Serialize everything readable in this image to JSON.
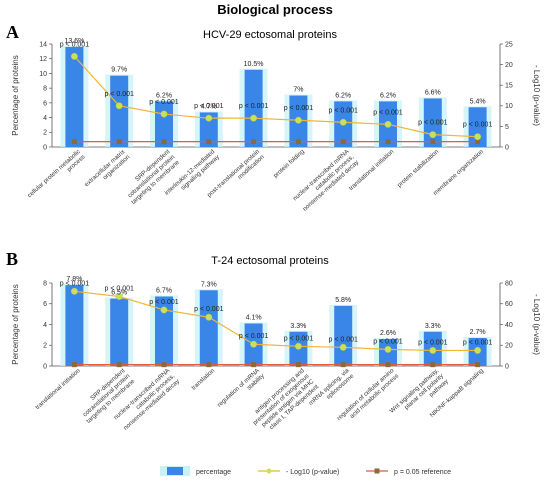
{
  "figure_title": "Biological process",
  "legend": {
    "percentage": "percentage",
    "log10": "- Log10 (p-value)",
    "reference": "p = 0.05 reference"
  },
  "colors": {
    "bar": "#3a86e8",
    "bar_shadow": "#c8f2f5",
    "line": "#f2b533",
    "marker": "#c9e05a",
    "reference": "#e35b3a"
  },
  "chart_data": [
    {
      "panel": "A",
      "type": "bar",
      "title": "HCV-29 ectosomal proteins",
      "ylabel_left": "Percentage of proteins",
      "ylabel_right": "- Log10 (p-value)",
      "ylim_left": [
        0,
        14
      ],
      "yticks_left": [
        0,
        2,
        4,
        6,
        8,
        10,
        12,
        14
      ],
      "ylim_right": [
        0,
        25
      ],
      "yticks_right": [
        0,
        5,
        10,
        15,
        20,
        25
      ],
      "categories": [
        [
          "cellular protein metabolic",
          "process"
        ],
        [
          "extracellular matrix",
          "organization"
        ],
        [
          "SRP-dependent",
          "cotranslational protein",
          "targeting to membrane"
        ],
        [
          "interleukin-12-mediated",
          "signaling pathway"
        ],
        [
          "post-translational protein",
          "modification"
        ],
        [
          "protein folding"
        ],
        [
          "nuclear-transcribed mRNA",
          "catabolic process,",
          "nonsense-mediated decay"
        ],
        [
          "translational initiation"
        ],
        [
          "protein stabilization"
        ],
        [
          "membrane organization"
        ]
      ],
      "percent_labels": [
        "13.6%",
        "9.7%",
        "6.2%",
        "4.7%",
        "10.5%",
        "7%",
        "6.2%",
        "6.2%",
        "6.6%",
        "5.4%"
      ],
      "series": [
        {
          "name": "percentage",
          "values": [
            13.6,
            9.7,
            6.2,
            4.7,
            10.5,
            7.0,
            6.2,
            6.2,
            6.6,
            5.4
          ]
        },
        {
          "name": "- Log10 (p-value)",
          "values": [
            22.0,
            10.0,
            8.0,
            7.0,
            7.0,
            6.5,
            6.0,
            5.5,
            3.0,
            2.5
          ]
        },
        {
          "name": "p = 0.05 reference",
          "values": [
            1.3,
            1.3,
            1.3,
            1.3,
            1.3,
            1.3,
            1.3,
            1.3,
            1.3,
            1.3
          ]
        }
      ],
      "pvalue_labels": [
        "p < 0.001",
        "p < 0.001",
        "p < 0.001",
        "p < 0.001",
        "p < 0.001",
        "p < 0.001",
        "p < 0.001",
        "p < 0.001",
        "p < 0.001",
        "p < 0.001"
      ],
      "grid": false
    },
    {
      "panel": "B",
      "type": "bar",
      "title": "T-24 ectosomal proteins",
      "ylabel_left": "Percentage of proteins",
      "ylabel_right": "- Log10 (p-value)",
      "ylim_left": [
        0,
        8
      ],
      "yticks_left": [
        0,
        2,
        4,
        6,
        8
      ],
      "ylim_right": [
        0,
        80
      ],
      "yticks_right": [
        0,
        20,
        40,
        60,
        80
      ],
      "categories": [
        [
          "translational initiation"
        ],
        [
          "SRP-dependent",
          "cotranslational protein",
          "targeting to membrane"
        ],
        [
          "nuclear-transcribed mRNA",
          "catabolic process,",
          "nonsense-mediated decay"
        ],
        [
          "translation"
        ],
        [
          "regulation of mRNA",
          "stability"
        ],
        [
          "antigen processing and",
          "presentation of exogenous",
          "peptide antigen via MHC",
          "class I, TAP-dependent"
        ],
        [
          "mRNA splicing, via",
          "spliceosome"
        ],
        [
          "regulation of cellular amino",
          "acid metabolic process"
        ],
        [
          "Wnt signaling pathway,",
          "planar cell polarity",
          "pathway"
        ],
        [
          "NIK/NF-kappaB signaling"
        ]
      ],
      "percent_labels": [
        "7.8%",
        "6.5%",
        "6.7%",
        "7.3%",
        "4.1%",
        "3.3%",
        "5.8%",
        "2.6%",
        "3.3%",
        "2.7%"
      ],
      "series": [
        {
          "name": "percentage",
          "values": [
            7.8,
            6.5,
            6.7,
            7.3,
            4.1,
            3.3,
            5.8,
            2.6,
            3.3,
            2.7
          ]
        },
        {
          "name": "- Log10 (p-value)",
          "values": [
            72,
            67,
            54,
            47,
            21,
            19,
            18,
            16,
            15,
            15
          ]
        },
        {
          "name": "p = 0.05 reference",
          "values": [
            1.3,
            1.3,
            1.3,
            1.3,
            1.3,
            1.3,
            1.3,
            1.3,
            1.3,
            1.3
          ]
        }
      ],
      "pvalue_labels": [
        "p < 0.001",
        "p < 0.001",
        "p < 0.001",
        "p < 0.001",
        "p < 0.001",
        "p < 0.001",
        "p < 0.001",
        "p < 0.001",
        "p < 0.001",
        "p < 0.001"
      ],
      "grid": false
    }
  ]
}
